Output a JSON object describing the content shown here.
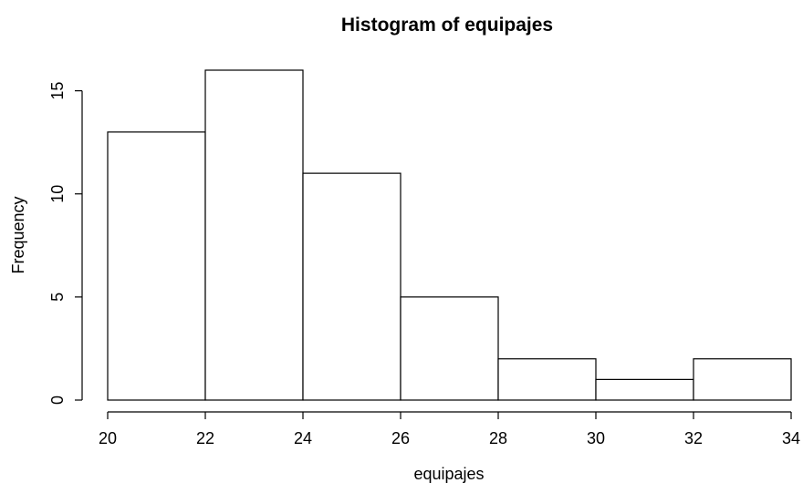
{
  "chart_data": {
    "type": "bar",
    "title": "Histogram of equipajes",
    "xlabel": "equipajes",
    "ylabel": "Frequency",
    "bins": [
      {
        "from": 20,
        "to": 22,
        "count": 13
      },
      {
        "from": 22,
        "to": 24,
        "count": 16
      },
      {
        "from": 24,
        "to": 26,
        "count": 11
      },
      {
        "from": 26,
        "to": 28,
        "count": 5
      },
      {
        "from": 28,
        "to": 30,
        "count": 2
      },
      {
        "from": 30,
        "to": 32,
        "count": 1
      },
      {
        "from": 32,
        "to": 34,
        "count": 2
      }
    ],
    "xlim": [
      20,
      34
    ],
    "ylim": [
      0,
      16
    ],
    "x_ticks": [
      "20",
      "22",
      "24",
      "26",
      "28",
      "30",
      "32",
      "34"
    ],
    "y_ticks": [
      "0",
      "5",
      "10",
      "15"
    ],
    "grid": false,
    "legend": "none",
    "colors": {
      "bar_fill": "#ffffff",
      "bar_stroke": "#000000"
    }
  }
}
